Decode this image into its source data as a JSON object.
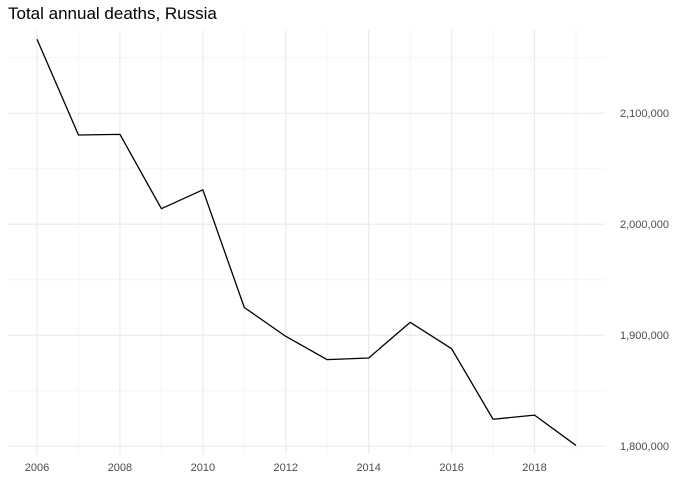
{
  "chart_data": {
    "type": "line",
    "title": "Total annual deaths, Russia",
    "xlabel": "",
    "ylabel": "",
    "x": [
      2006,
      2007,
      2008,
      2009,
      2010,
      2011,
      2012,
      2013,
      2014,
      2015,
      2016,
      2017,
      2018,
      2019
    ],
    "series": [
      {
        "values": [
          2166700,
          2080400,
          2081000,
          2014000,
          2031000,
          1925000,
          1899000,
          1878000,
          1879500,
          1911600,
          1887900,
          1824300,
          1828000,
          1800700
        ]
      }
    ],
    "xlim": [
      2005.3,
      2019.7
    ],
    "ylim": [
      1793000,
      2175000
    ],
    "x_ticks": [
      2006,
      2008,
      2010,
      2012,
      2014,
      2016,
      2018
    ],
    "x_tick_labels": [
      "2006",
      "2008",
      "2010",
      "2012",
      "2014",
      "2016",
      "2018"
    ],
    "y_ticks": [
      1800000,
      1900000,
      2000000,
      2100000
    ],
    "y_tick_labels": [
      "1,800,000",
      "1,900,000",
      "2,000,000",
      "2,100,000"
    ],
    "y_axis_position": "right",
    "grid": true,
    "line_color": "#000000",
    "grid_color": "#ebebeb"
  }
}
